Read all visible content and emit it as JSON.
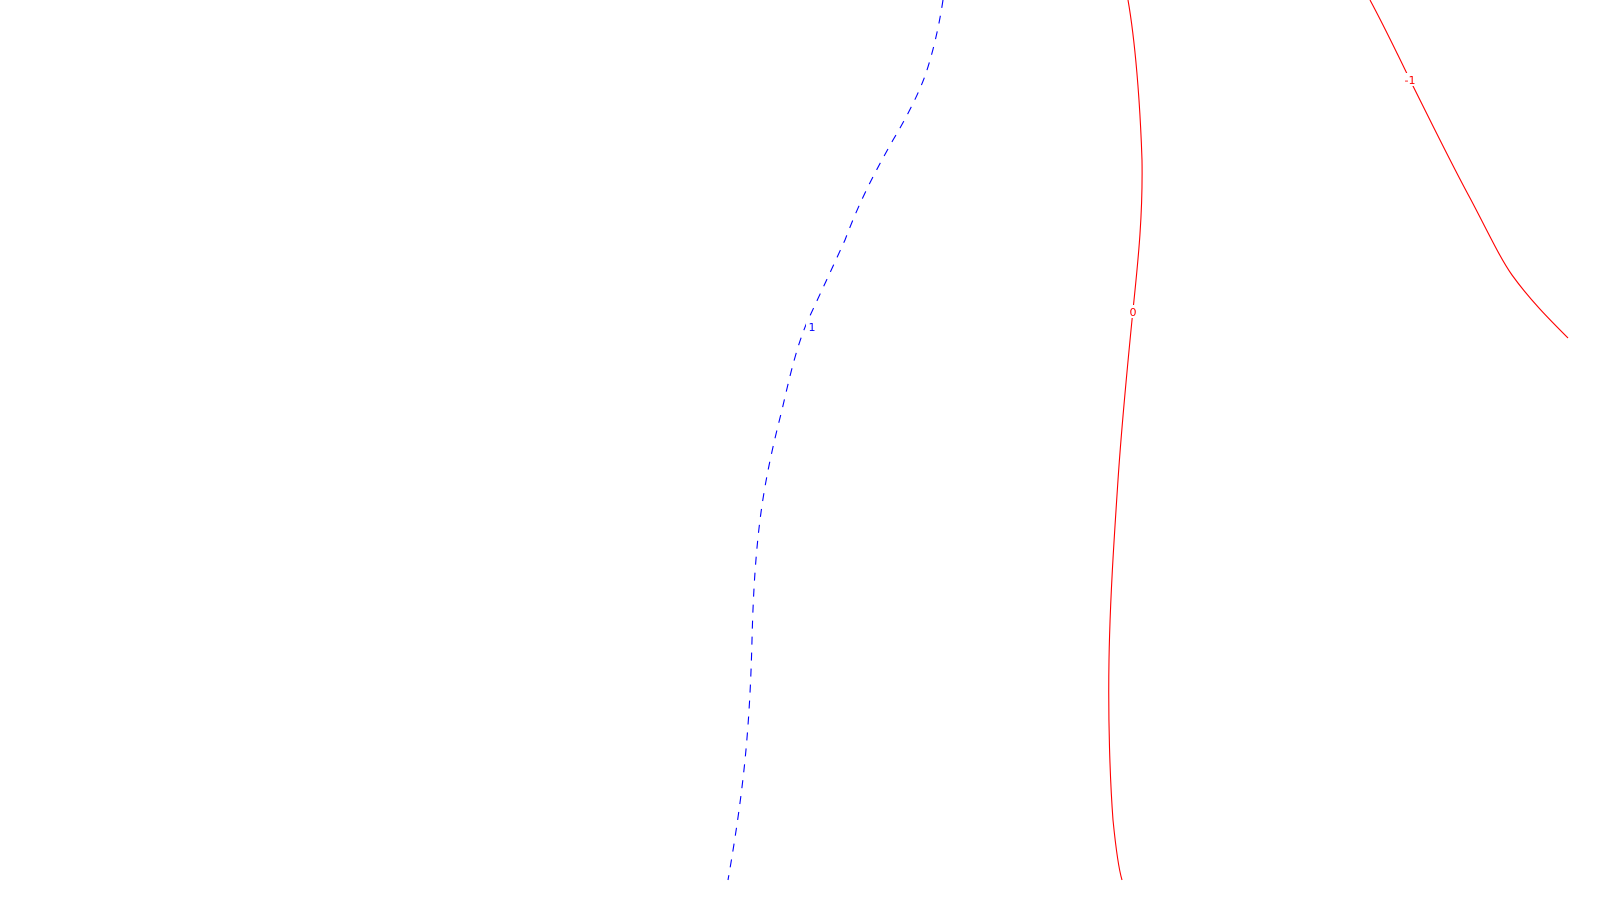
{
  "contours": [
    {
      "id": "contour-plus-1",
      "label": "1",
      "color": "#0000ff",
      "style": "dashed"
    },
    {
      "id": "contour-zero",
      "label": "0",
      "color": "#ff0000",
      "style": "solid"
    },
    {
      "id": "contour-minus-1",
      "label": "-1",
      "color": "#ff0000",
      "style": "solid"
    }
  ]
}
